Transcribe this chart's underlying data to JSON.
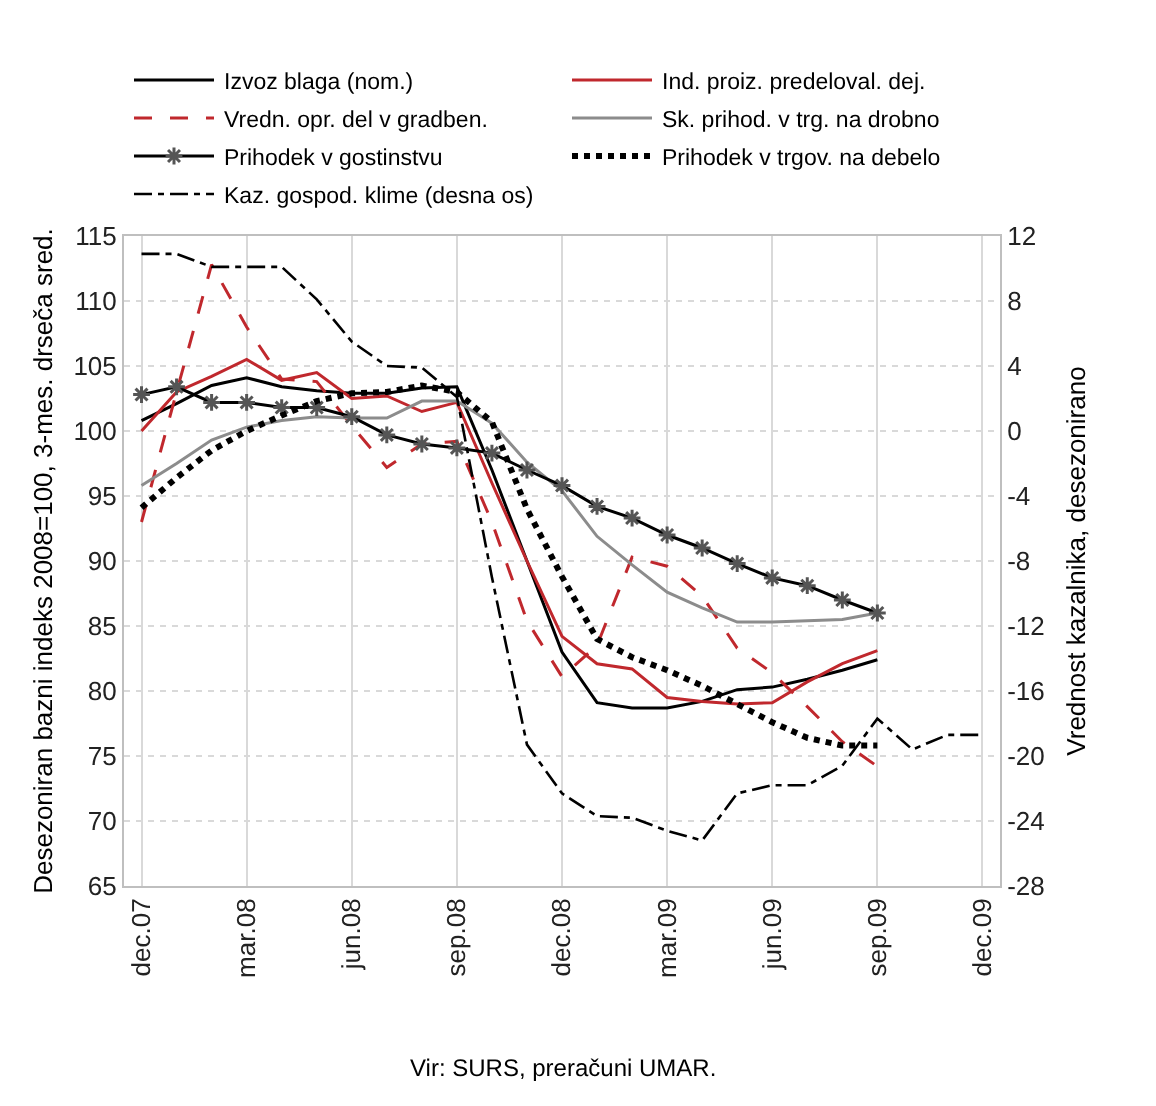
{
  "chart_data": {
    "type": "line",
    "categories": [
      "dec.07",
      null,
      null,
      "mar.08",
      null,
      null,
      "jun.08",
      null,
      null,
      "sep.08",
      null,
      null,
      "dec.08",
      null,
      null,
      "mar.09",
      null,
      null,
      "jun.09",
      null,
      null,
      "sep.09",
      null,
      null,
      "dec.09"
    ],
    "series": [
      {
        "name": "Izvoz blaga (nom.)",
        "color": "#000000",
        "line_style": "solid",
        "values": [
          100.8,
          102.1,
          103.5,
          104.1,
          103.4,
          103.1,
          102.9,
          102.9,
          103.3,
          103.4,
          97,
          90,
          83.0,
          79.1,
          78.7,
          78.7,
          79.2,
          80.1,
          80.3,
          80.9,
          81.6,
          82.4,
          null,
          null,
          null
        ]
      },
      {
        "name": "Ind. proiz. predeloval. dej.",
        "color": "#c0282d",
        "line_style": "solid",
        "values": [
          100.0,
          103.0,
          104.2,
          105.5,
          103.9,
          104.5,
          102.5,
          102.7,
          101.5,
          102.2,
          96,
          90,
          84.2,
          82.1,
          81.7,
          79.5,
          79.2,
          79.0,
          79.1,
          80.7,
          82.1,
          83.1,
          null,
          null,
          null
        ]
      },
      {
        "name": "Vredn. opr. del v gradben.",
        "color": "#c0282d",
        "line_style": "dashed",
        "values": [
          93.0,
          103,
          112.8,
          108,
          104.0,
          103.8,
          100.4,
          97.2,
          99.0,
          99.2,
          93,
          85.4,
          81.1,
          83.5,
          90.3,
          89.6,
          87.3,
          83.3,
          81.4,
          78.8,
          76.1,
          74.2,
          null,
          null,
          null
        ]
      },
      {
        "name": "Sk. prihod. v trg. na drobno",
        "color": "#8c8c8c",
        "line_style": "solid",
        "values": [
          95.8,
          97.5,
          99.3,
          100.3,
          100.8,
          101.1,
          101.0,
          101.0,
          102.3,
          102.3,
          100.6,
          97.6,
          95.4,
          91.9,
          89.7,
          87.6,
          86.4,
          85.3,
          85.3,
          85.4,
          85.5,
          86.0,
          null,
          null,
          null
        ]
      },
      {
        "name": "Prihodek v gostinstvu",
        "color": "#000000",
        "line_style": "solid",
        "marker": "cross",
        "values": [
          102.8,
          103.4,
          102.2,
          102.2,
          101.8,
          101.8,
          101.1,
          99.7,
          99.0,
          98.7,
          98.3,
          97.0,
          95.8,
          94.2,
          93.3,
          92.0,
          91.0,
          89.8,
          88.7,
          88.1,
          87.0,
          86.0,
          null,
          null,
          null
        ]
      },
      {
        "name": "Prihodek v trgov. na debelo",
        "color": "#000000",
        "line_style": "dotted",
        "values": [
          94.1,
          96.4,
          98.5,
          100.0,
          101.2,
          102.3,
          102.9,
          103.0,
          103.5,
          103.0,
          100.7,
          94.0,
          88.8,
          84.0,
          82.6,
          81.6,
          80.4,
          79.0,
          77.6,
          76.4,
          75.8,
          75.8,
          null,
          null,
          null
        ]
      },
      {
        "name": "Kaz. gospod. klime (desna os)",
        "color": "#000000",
        "line_style": "dashdot",
        "axis": "y2",
        "values": [
          10.9,
          10.9,
          10.1,
          10.1,
          10.1,
          8.1,
          5.5,
          4.0,
          3.9,
          2.1,
          -9,
          -19.3,
          -22.3,
          -23.7,
          -23.8,
          -24.6,
          -25.2,
          -22.3,
          -21.8,
          -21.8,
          -20.6,
          -17.7,
          -19.6,
          -18.7,
          -18.7
        ]
      }
    ],
    "ylabel": "Desezoniran bazni indeks 2008=100, 3-mes. drseča sred.",
    "y2label": "Vrednost kazalnika, desezonirano",
    "ylim": [
      65,
      115
    ],
    "yticks": [
      65,
      70,
      75,
      80,
      85,
      90,
      95,
      100,
      105,
      110,
      115
    ],
    "y2lim": [
      -28,
      12
    ],
    "y2ticks": [
      -28,
      -24,
      -20,
      -16,
      -12,
      -8,
      -4,
      0,
      4,
      8,
      12
    ],
    "annotations": [
      "Vir: SURS, preračuni UMAR."
    ],
    "grid": true,
    "legend": "top"
  }
}
